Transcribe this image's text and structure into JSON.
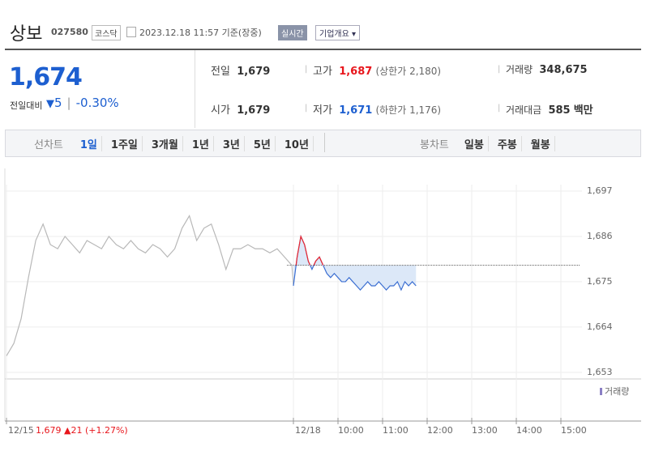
{
  "header": {
    "name": "상보",
    "code": "027580",
    "market": "코스닥",
    "timestamp": "2023.12.18 11:57 기준(장중)",
    "realtime": "실시간",
    "company_button": "기업개요"
  },
  "quote": {
    "price": "1,674",
    "change_label": "전일대비",
    "direction": "▼",
    "change": "5",
    "change_pct": "-0.30%",
    "prev": {
      "label": "전일",
      "value": "1,679"
    },
    "open": {
      "label": "시가",
      "value": "1,679"
    },
    "high": {
      "label": "고가",
      "value": "1,687",
      "limit": "(상한가 2,180)"
    },
    "low": {
      "label": "저가",
      "value": "1,671",
      "limit": "(하한가 1,176)"
    },
    "volume": {
      "label": "거래량",
      "value": "348,675"
    },
    "amount": {
      "label": "거래대금",
      "value": "585",
      "unit": "백만"
    }
  },
  "tabs": {
    "line_label": "선차트",
    "line_periods": [
      "1일",
      "1주일",
      "3개월",
      "1년",
      "3년",
      "5년",
      "10년"
    ],
    "candle_label": "봉차트",
    "candle_periods": [
      "일봉",
      "주봉",
      "월봉"
    ]
  },
  "chart_data": {
    "type": "line",
    "x_labels": [
      "12/15",
      "12/18",
      "10:00",
      "11:00",
      "12:00",
      "13:00",
      "14:00",
      "15:00"
    ],
    "series": [
      {
        "color": "#b8b8b8",
        "values": [
          1657,
          1660,
          1666,
          1676,
          1685,
          1689,
          1684,
          1683,
          1686,
          1684,
          1682,
          1685,
          1684,
          1683,
          1686,
          1684,
          1683,
          1685,
          1683,
          1682,
          1684,
          1683,
          1681,
          1683,
          1688,
          1691,
          1685,
          1688,
          1689,
          1684,
          1678,
          1683,
          1683,
          1684,
          1683,
          1683,
          1682,
          1683,
          1681,
          1679
        ]
      },
      {
        "color": "#3c6fd2",
        "up_color": "#f0262c",
        "area_color": "#dce8f8",
        "values": [
          1674,
          1681,
          1686,
          1684,
          1680,
          1678,
          1680,
          1681,
          1679,
          1677,
          1676,
          1677,
          1676,
          1675,
          1675,
          1676,
          1675,
          1674,
          1673,
          1674,
          1675,
          1674,
          1674,
          1675,
          1674,
          1673,
          1674,
          1674,
          1675,
          1673,
          1675,
          1674,
          1675,
          1674
        ]
      }
    ],
    "reference": 1679,
    "ylim": [
      1651.4,
      1702.5
    ],
    "yticks": [
      {
        "value": 1653,
        "label": "1,653"
      },
      {
        "value": 1664,
        "label": "1,664"
      },
      {
        "value": 1675,
        "label": "1,675"
      },
      {
        "value": 1686,
        "label": "1,686"
      },
      {
        "value": 1697,
        "label": "1,697"
      }
    ],
    "grid": true,
    "volume_label": "거래량"
  },
  "footer": {
    "close": "1,679",
    "direction": "▲",
    "change": "21",
    "change_pct": "(+1.27%)"
  }
}
